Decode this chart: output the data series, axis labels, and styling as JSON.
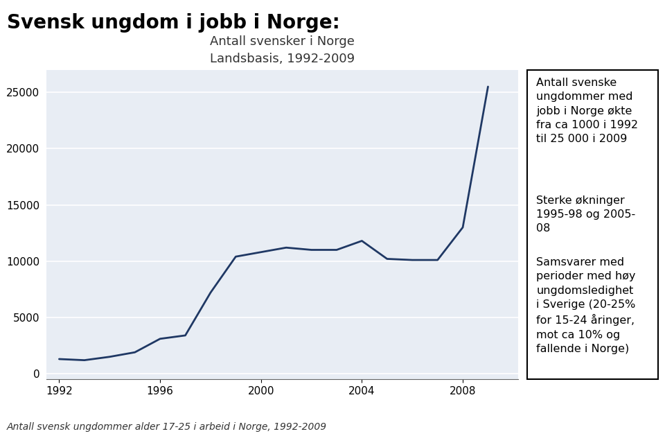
{
  "title": "Svensk ungdom i jobb i Norge:",
  "chart_title": "Antall svensker i Norge",
  "chart_subtitle": "Landsbasis, 1992-2009",
  "footnote": "Antall svensk ungdommer alder 17-25 i arbeid i Norge, 1992-2009",
  "years": [
    1992,
    1993,
    1994,
    1995,
    1996,
    1997,
    1998,
    1999,
    2000,
    2001,
    2002,
    2003,
    2004,
    2005,
    2006,
    2007,
    2008,
    2009
  ],
  "values": [
    1300,
    1200,
    1500,
    1900,
    3100,
    3400,
    7200,
    10400,
    10800,
    11200,
    11000,
    11000,
    11800,
    10200,
    10100,
    10100,
    13000,
    25500
  ],
  "line_color": "#1f3864",
  "chart_bg": "#e8edf4",
  "fig_bg": "#ffffff",
  "yticks": [
    0,
    5000,
    10000,
    15000,
    20000,
    25000
  ],
  "xticks": [
    1992,
    1996,
    2000,
    2004,
    2008
  ],
  "ylim": [
    -500,
    27000
  ],
  "xlim": [
    1991.5,
    2010.2
  ],
  "sidebar_paragraphs": [
    "Antall svenske\nungdommer med\njobb i Norge økte\nfra ca 1000 i 1992\ntil 25 000 i 2009",
    "Sterke økninger\n1995-98 og 2005-\n08",
    "Samsvarer med\nperioder med høy\nungdomsledighet\ni Sverige (20-25%\nfor 15-24 åringer,\nmot ca 10% og\nfallende i Norge)"
  ],
  "sidebar_bg": "#ffffff",
  "sidebar_border": "#000000",
  "title_fontsize": 20,
  "chart_title_fontsize": 13,
  "chart_subtitle_fontsize": 11,
  "tick_fontsize": 11,
  "footnote_fontsize": 10,
  "sidebar_fontsize": 11.5
}
